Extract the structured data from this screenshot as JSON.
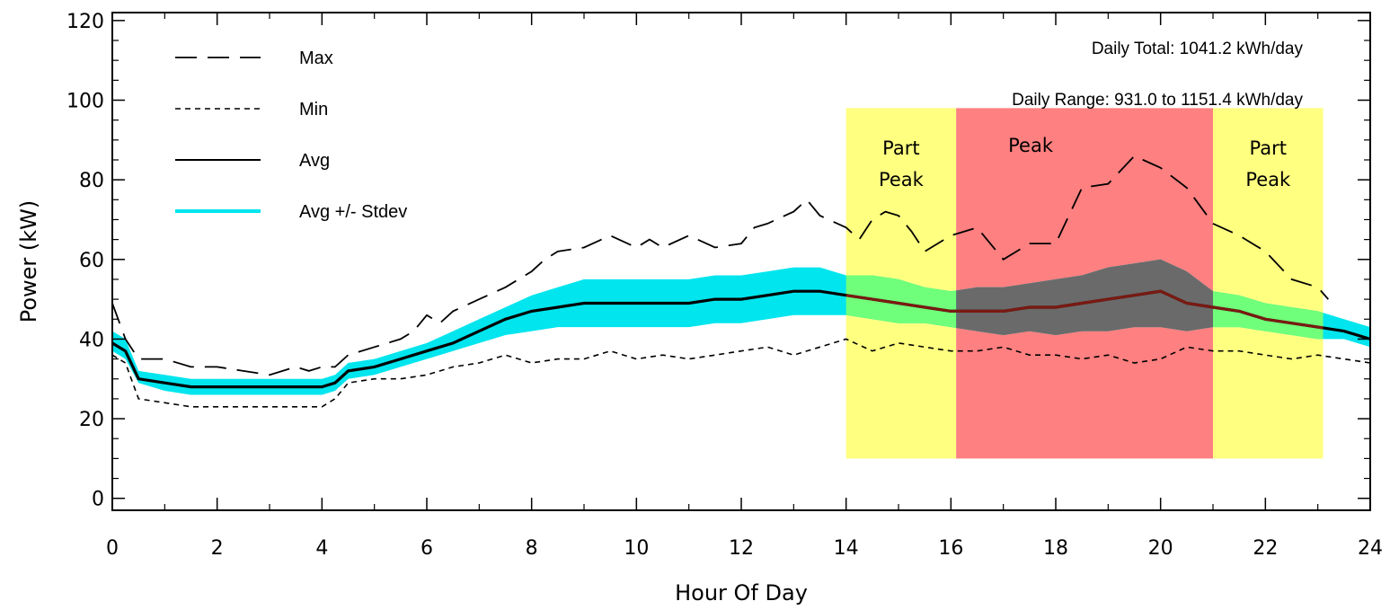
{
  "chart_data": {
    "type": "line",
    "xlabel": "Hour Of Day",
    "ylabel": "Power (kW)",
    "xlim": [
      0,
      24
    ],
    "ylim": [
      -3,
      122
    ],
    "x_ticks": [
      0,
      2,
      4,
      6,
      8,
      10,
      12,
      14,
      16,
      18,
      20,
      22,
      24
    ],
    "y_ticks": [
      0,
      20,
      40,
      60,
      80,
      100,
      120
    ],
    "legend_position": "top-left",
    "grid": false,
    "colors": {
      "band": "#00e5ee",
      "band_in_part_peak": "#6fff7a",
      "band_in_peak": "#6a6a6a",
      "part_peak_zone": "#ffff80",
      "peak_zone": "#ff8080",
      "avg_in_zones": "#7a1a12"
    },
    "legend": [
      {
        "label": "Max",
        "style": "long-dash",
        "color": "#000000"
      },
      {
        "label": "Min",
        "style": "short-dash",
        "color": "#000000"
      },
      {
        "label": "Avg",
        "style": "solid",
        "color": "#000000"
      },
      {
        "label": "Avg +/- Stdev",
        "style": "band",
        "color": "#00e5ee"
      }
    ],
    "annotations": {
      "daily_total": "Daily Total: 1041.2 kWh/day",
      "daily_range": "Daily Range: 931.0 to 1151.4 kWh/day"
    },
    "zones": [
      {
        "label_lines": [
          "Part",
          "Peak"
        ],
        "x_start": 14,
        "x_end": 16.1,
        "y_min": 10,
        "y_max": 98,
        "kind": "part-peak"
      },
      {
        "label_lines": [
          "Peak"
        ],
        "x_start": 16.1,
        "x_end": 21.0,
        "y_min": 10,
        "y_max": 98,
        "kind": "peak"
      },
      {
        "label_lines": [
          "Part",
          "Peak"
        ],
        "x_start": 21.0,
        "x_end": 23.1,
        "y_min": 10,
        "y_max": 98,
        "kind": "part-peak"
      }
    ],
    "series": [
      {
        "name": "Max",
        "x": [
          0,
          0.25,
          0.5,
          1,
          1.5,
          2,
          2.5,
          3,
          3.5,
          3.75,
          4,
          4.25,
          4.5,
          5,
          5.5,
          5.75,
          6,
          6.25,
          6.5,
          7,
          7.5,
          8,
          8.25,
          8.5,
          9,
          9.5,
          10,
          10.25,
          10.5,
          11,
          11.5,
          12,
          12.25,
          12.5,
          13,
          13.25,
          13.5,
          14,
          14.25,
          14.5,
          14.75,
          15,
          15.25,
          15.5,
          16,
          16.5,
          16.75,
          17,
          17.5,
          18,
          18.5,
          19,
          19.5,
          20,
          20.5,
          21,
          21.5,
          22,
          22.5,
          23,
          23.2
        ],
        "values": [
          49,
          40,
          35,
          35,
          33,
          33,
          32,
          31,
          33,
          32,
          33,
          33,
          36,
          38,
          40,
          42,
          46,
          44,
          47,
          50,
          53,
          57,
          60,
          62,
          63,
          66,
          63,
          65,
          63,
          66,
          63,
          64,
          68,
          69,
          72,
          75,
          71,
          68,
          65,
          70,
          72,
          71,
          67,
          62,
          66,
          68,
          64,
          60,
          64,
          64,
          78,
          79,
          86,
          83,
          78,
          69,
          66,
          62,
          55,
          53,
          50
        ]
      },
      {
        "name": "Min",
        "x": [
          0,
          0.25,
          0.5,
          1,
          1.5,
          2,
          3,
          4,
          4.25,
          4.5,
          5,
          5.5,
          6,
          6.5,
          7,
          7.5,
          8,
          8.5,
          9,
          9.5,
          10,
          10.5,
          11,
          11.5,
          12,
          12.5,
          13,
          13.5,
          14,
          14.5,
          15,
          15.5,
          16,
          16.5,
          17,
          17.5,
          18,
          18.5,
          19,
          19.5,
          20,
          20.5,
          21,
          21.5,
          22,
          22.5,
          23,
          23.5,
          24
        ],
        "values": [
          36,
          34,
          25,
          24,
          23,
          23,
          23,
          23,
          25,
          29,
          30,
          30,
          31,
          33,
          34,
          36,
          34,
          35,
          35,
          37,
          35,
          36,
          35,
          36,
          37,
          38,
          36,
          38,
          40,
          37,
          39,
          38,
          37,
          37,
          38,
          36,
          36,
          35,
          36,
          34,
          35,
          38,
          37,
          37,
          36,
          35,
          36,
          35,
          34
        ]
      },
      {
        "name": "Avg",
        "x": [
          0,
          0.25,
          0.5,
          1,
          1.5,
          2,
          2.5,
          3,
          3.5,
          4,
          4.25,
          4.5,
          5,
          5.5,
          6,
          6.5,
          7,
          7.5,
          8,
          8.5,
          9,
          9.5,
          10,
          10.5,
          11,
          11.5,
          12,
          12.5,
          13,
          13.5,
          14,
          14.5,
          15,
          15.5,
          16,
          16.5,
          17,
          17.5,
          18,
          18.5,
          19,
          19.5,
          20,
          20.5,
          21,
          21.5,
          22,
          22.5,
          23,
          23.5,
          24
        ],
        "values": [
          39,
          37,
          30,
          29,
          28,
          28,
          28,
          28,
          28,
          28,
          29,
          32,
          33,
          35,
          37,
          39,
          42,
          45,
          47,
          48,
          49,
          49,
          49,
          49,
          49,
          50,
          50,
          51,
          52,
          52,
          51,
          50,
          49,
          48,
          47,
          47,
          47,
          48,
          48,
          49,
          50,
          51,
          52,
          49,
          48,
          47,
          45,
          44,
          43,
          42,
          40
        ]
      },
      {
        "name": "Avg +/- Stdev",
        "x": [
          0,
          0.25,
          0.5,
          1,
          1.5,
          2,
          2.5,
          3,
          3.5,
          4,
          4.25,
          4.5,
          5,
          5.5,
          6,
          6.5,
          7,
          7.5,
          8,
          8.5,
          9,
          9.5,
          10,
          10.5,
          11,
          11.5,
          12,
          12.5,
          13,
          13.5,
          14,
          14.5,
          15,
          15.5,
          16,
          16.5,
          17,
          17.5,
          18,
          18.5,
          19,
          19.5,
          20,
          20.5,
          21,
          21.5,
          22,
          22.5,
          23,
          23.5,
          24
        ],
        "upper": [
          42,
          40,
          32,
          31,
          30,
          30,
          30,
          30,
          30,
          30,
          31,
          34,
          35,
          37,
          39,
          42,
          45,
          48,
          51,
          53,
          55,
          55,
          55,
          55,
          55,
          56,
          56,
          57,
          58,
          58,
          56,
          56,
          55,
          53,
          52,
          53,
          53,
          54,
          55,
          56,
          58,
          59,
          60,
          57,
          52,
          51,
          49,
          48,
          47,
          45,
          43
        ],
        "lower": [
          37,
          35,
          29,
          27,
          26,
          26,
          26,
          26,
          26,
          26,
          27,
          30,
          31,
          33,
          35,
          37,
          39,
          41,
          42,
          43,
          43,
          43,
          43,
          43,
          43,
          44,
          44,
          45,
          46,
          46,
          46,
          45,
          44,
          44,
          43,
          42,
          41,
          42,
          41,
          42,
          42,
          43,
          43,
          42,
          43,
          43,
          42,
          41,
          40,
          40,
          38
        ]
      }
    ]
  }
}
